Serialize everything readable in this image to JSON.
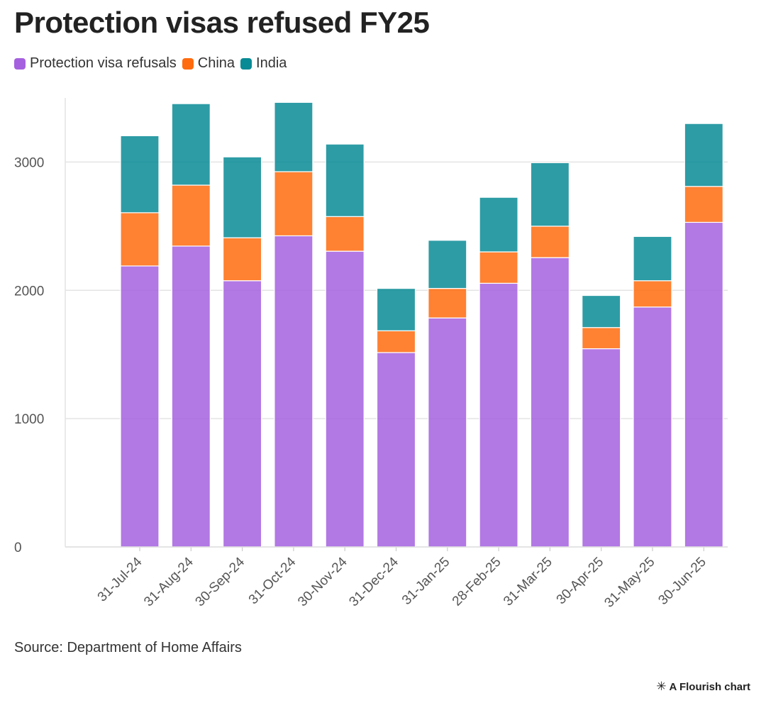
{
  "title": "Protection visas refused FY25",
  "source": "Source: Department of Home Affairs",
  "credit": "A Flourish chart",
  "chart_data": {
    "type": "bar",
    "stacked": true,
    "title": "Protection visas refused FY25",
    "xlabel": "",
    "ylabel": "",
    "ylim": [
      0,
      3500
    ],
    "yticks": [
      0,
      1000,
      2000,
      3000
    ],
    "grid": true,
    "legend_position": "top-left",
    "categories": [
      "31-Jul-24",
      "31-Aug-24",
      "30-Sep-24",
      "31-Oct-24",
      "30-Nov-24",
      "31-Dec-24",
      "31-Jan-25",
      "28-Feb-25",
      "31-Mar-25",
      "30-Apr-25",
      "31-May-25",
      "30-Jun-25"
    ],
    "series": [
      {
        "name": "Protection visa refusals",
        "color": "#A560DF",
        "values": [
          2190,
          2345,
          2075,
          2425,
          2305,
          1515,
          1785,
          2055,
          2255,
          1545,
          1870,
          2530
        ]
      },
      {
        "name": "China",
        "color": "#FF6B0E",
        "values": [
          415,
          475,
          335,
          500,
          270,
          170,
          230,
          245,
          245,
          165,
          205,
          280
        ]
      },
      {
        "name": "India",
        "color": "#088B95",
        "values": [
          600,
          635,
          630,
          540,
          565,
          330,
          375,
          425,
          495,
          250,
          345,
          490
        ]
      }
    ]
  }
}
